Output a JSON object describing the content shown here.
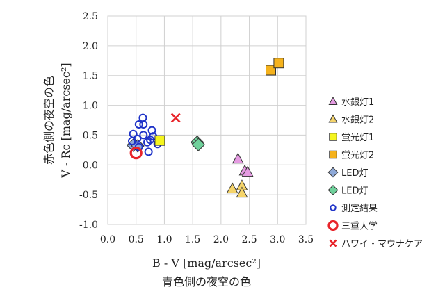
{
  "chart_data": {
    "type": "scatter",
    "xlabel": "B - V [mag/arcsec²]",
    "xlabel_sub": "青色側の夜空の色",
    "ylabel": "V - Rc [mag/arcsec²]",
    "ylabel_sub": "赤色側の夜空の色",
    "xlim": [
      0.0,
      3.5
    ],
    "ylim": [
      -1.0,
      2.5
    ],
    "xticks": [
      "0.0",
      "0.5",
      "1.0",
      "1.5",
      "2.0",
      "2.5",
      "3.0",
      "3.5"
    ],
    "yticks": [
      "-1.0",
      "-0.5",
      "0.0",
      "0.5",
      "1.0",
      "1.5",
      "2.0",
      "2.5"
    ],
    "grid": "vertical and horizontal major gridlines",
    "legend_position": "right",
    "series": [
      {
        "name": "水銀灯1",
        "marker": "triangle",
        "color": "#e59be2",
        "points": [
          [
            2.3,
            0.1
          ],
          [
            2.42,
            -0.1
          ],
          [
            2.47,
            -0.12
          ]
        ]
      },
      {
        "name": "水銀灯2",
        "marker": "triangle",
        "color": "#f5d46a",
        "points": [
          [
            2.2,
            -0.4
          ],
          [
            2.37,
            -0.35
          ],
          [
            2.37,
            -0.47
          ]
        ]
      },
      {
        "name": "蛍光灯1",
        "marker": "square",
        "color": "#f5f51e",
        "points": [
          [
            0.92,
            0.41
          ]
        ]
      },
      {
        "name": "蛍光灯2",
        "marker": "square",
        "color": "#f5b21c",
        "points": [
          [
            2.88,
            1.59
          ],
          [
            3.02,
            1.71
          ]
        ]
      },
      {
        "name": "LED灯",
        "marker": "diamond",
        "color": "#8ea9d8",
        "points": [
          [
            0.45,
            0.33
          ],
          [
            0.53,
            0.32
          ]
        ]
      },
      {
        "name": "LED灯",
        "marker": "diamond",
        "color": "#6fd19b",
        "points": [
          [
            1.58,
            0.38
          ],
          [
            1.6,
            0.34
          ]
        ]
      },
      {
        "name": "測定結果",
        "marker": "circle-open",
        "color": "#1f33c8",
        "points": [
          [
            0.45,
            0.52
          ],
          [
            0.52,
            0.44
          ],
          [
            0.55,
            0.68
          ],
          [
            0.62,
            0.79
          ],
          [
            0.63,
            0.68
          ],
          [
            0.63,
            0.5
          ],
          [
            0.7,
            0.38
          ],
          [
            0.75,
            0.42
          ],
          [
            0.78,
            0.58
          ],
          [
            0.8,
            0.48
          ],
          [
            0.72,
            0.22
          ],
          [
            0.43,
            0.4
          ],
          [
            0.88,
            0.35
          ],
          [
            0.55,
            0.3
          ]
        ]
      },
      {
        "name": "三重大学",
        "marker": "circle-open-thick",
        "color": "#e8242a",
        "points": [
          [
            0.5,
            0.2
          ]
        ]
      },
      {
        "name": "ハワイ・マウナケア",
        "marker": "x",
        "color": "#e8242a",
        "points": [
          [
            1.2,
            0.79
          ]
        ]
      }
    ]
  }
}
